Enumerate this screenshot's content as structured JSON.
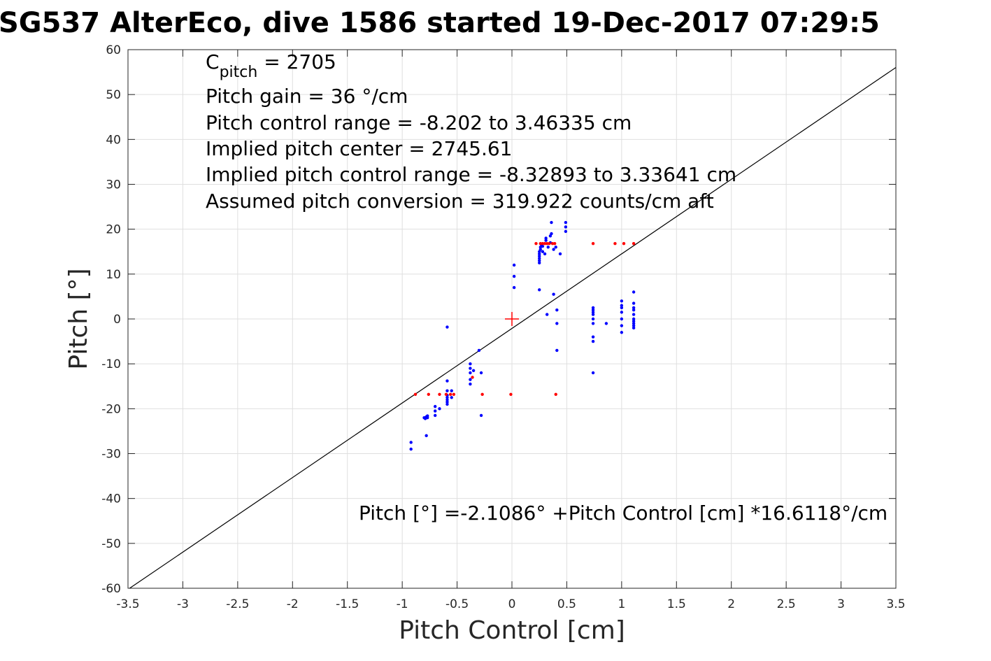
{
  "chart_data": {
    "type": "scatter",
    "title": "SG537 AlterEco, dive 1586 started 19-Dec-2017 07:29:5",
    "xlabel": "Pitch Control [cm]",
    "ylabel": "Pitch [°]",
    "xlim": [
      -3.5,
      3.5
    ],
    "ylim": [
      -60,
      60
    ],
    "grid": true,
    "xticks": [
      -3.5,
      -3,
      -2.5,
      -2,
      -1.5,
      -1,
      -0.5,
      0,
      0.5,
      1,
      1.5,
      2,
      2.5,
      3,
      3.5
    ],
    "xtick_labels": [
      "-3.5",
      "-3",
      "-2.5",
      "-2",
      "-1.5",
      "-1",
      "-0.5",
      "0",
      "0.5",
      "1",
      "1.5",
      "2",
      "2.5",
      "3",
      "3.5"
    ],
    "yticks": [
      -60,
      -50,
      -40,
      -30,
      -20,
      -10,
      0,
      10,
      20,
      30,
      40,
      50,
      60
    ],
    "ytick_labels": [
      "-60",
      "-50",
      "-40",
      "-30",
      "-20",
      "-10",
      "0",
      "10",
      "20",
      "30",
      "40",
      "50",
      "60"
    ],
    "fit_line": {
      "intercept": -2.1086,
      "slope": 16.6118,
      "color": "#000000"
    },
    "center_marker": {
      "x": 0,
      "y": 0,
      "color": "#ff0000"
    },
    "annotations": {
      "c_pitch_main": "C",
      "c_pitch_sub": "pitch",
      "c_pitch_rest": " = 2705",
      "pitch_gain": "Pitch gain = 36 °/cm",
      "pitch_control_range": "Pitch control range = -8.202 to 3.46335 cm",
      "implied_center": "Implied pitch center = 2745.61",
      "implied_range": "Implied pitch control range = -8.32893 to 3.33641 cm",
      "conversion": "Assumed pitch conversion = 319.922 counts/cm aft",
      "fit_equation": "Pitch [°] =-2.1086° +Pitch Control [cm] *16.6118°/cm"
    },
    "series": [
      {
        "color": "#0000ff",
        "x": [
          -0.92,
          -0.92,
          -0.8,
          -0.79,
          -0.78,
          -0.78,
          -0.77,
          -0.77,
          -0.7,
          -0.7,
          -0.7,
          -0.66,
          -0.59,
          -0.59,
          -0.59,
          -0.59,
          -0.59,
          -0.59,
          -0.59,
          -0.59,
          -0.55,
          -0.55,
          -0.38,
          -0.38,
          -0.38,
          -0.38,
          -0.38,
          -0.35,
          -0.3,
          -0.28,
          -0.28,
          0.02,
          0.02,
          0.02,
          0.25,
          0.25,
          0.25,
          0.25,
          0.25,
          0.25,
          0.25,
          0.26,
          0.26,
          0.27,
          0.28,
          0.28,
          0.3,
          0.31,
          0.31,
          0.32,
          0.33,
          0.35,
          0.35,
          0.36,
          0.36,
          0.38,
          0.38,
          0.4,
          0.41,
          0.41,
          0.41,
          0.44,
          0.49,
          0.49,
          0.49,
          0.74,
          0.74,
          0.74,
          0.74,
          0.74,
          0.74,
          0.74,
          0.74,
          0.74,
          0.86,
          1.0,
          1.0,
          1.0,
          1.0,
          1.0,
          1.0,
          1.0,
          1.11,
          1.11,
          1.11,
          1.11,
          1.11,
          1.11,
          1.11,
          1.11,
          1.11,
          1.11
        ],
        "y": [
          -27.5,
          -29.0,
          -22.0,
          -22.2,
          -21.8,
          -26.0,
          -22.0,
          -21.6,
          -19.5,
          -20.5,
          -21.5,
          -20.0,
          -1.8,
          -13.8,
          -16.0,
          -17.0,
          -17.5,
          -18.0,
          -18.5,
          -19.0,
          -16.0,
          -17.5,
          -10.0,
          -11.0,
          -12.0,
          -13.5,
          -14.5,
          -11.5,
          -7.0,
          -12.0,
          -21.5,
          7.0,
          9.5,
          12.0,
          6.5,
          12.5,
          13.0,
          13.5,
          14.0,
          14.5,
          15.0,
          15.5,
          16.0,
          16.5,
          15.0,
          16.2,
          14.5,
          17.5,
          18.0,
          1.0,
          16.0,
          17.0,
          18.5,
          19.0,
          21.5,
          15.5,
          5.5,
          16.0,
          2.0,
          -1.0,
          -7.0,
          14.5,
          19.5,
          20.5,
          21.5,
          -12.0,
          -5.0,
          -4.0,
          -1.0,
          0.0,
          1.0,
          1.5,
          2.0,
          2.5,
          -1.0,
          -3.0,
          -1.5,
          0.0,
          1.5,
          2.5,
          3.0,
          4.0,
          -2.0,
          -1.5,
          -1.0,
          -0.5,
          0.0,
          1.0,
          2.0,
          2.5,
          3.5,
          6.0
        ]
      },
      {
        "color": "#ff0000",
        "x": [
          -0.88,
          -0.76,
          -0.66,
          -0.6,
          -0.56,
          -0.53,
          -0.36,
          -0.27,
          -0.01,
          0.22,
          0.26,
          0.28,
          0.3,
          0.32,
          0.34,
          0.37,
          0.39,
          0.4,
          0.74,
          0.94,
          1.02,
          1.11
        ],
        "y": [
          -16.8,
          -16.8,
          -16.8,
          -16.8,
          -16.8,
          -16.8,
          -13.0,
          -16.8,
          -16.8,
          16.8,
          16.8,
          16.8,
          16.8,
          16.8,
          16.8,
          16.8,
          16.8,
          -16.8,
          16.8,
          16.8,
          16.8,
          16.8
        ]
      }
    ]
  }
}
